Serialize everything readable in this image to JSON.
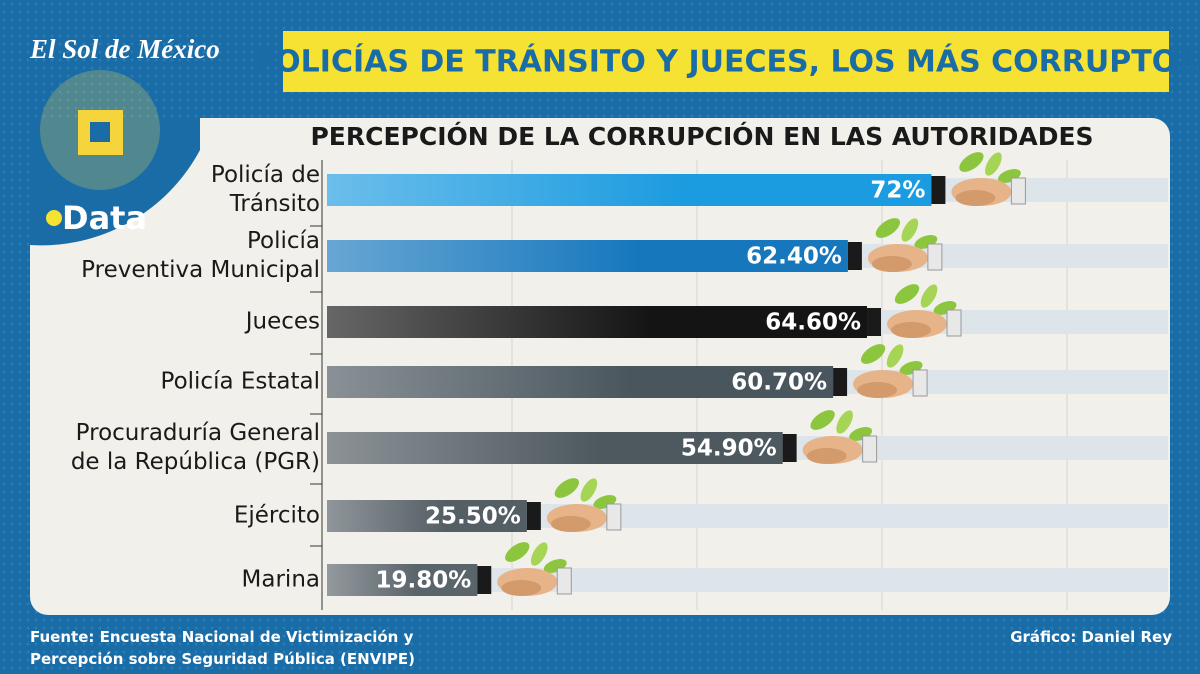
{
  "chart_data": {
    "type": "bar",
    "brand": "El Sol de México",
    "badge": "Data",
    "title": "POLICÍAS DE TRÁNSITO Y JUECES, LOS MÁS CORRUPTOS",
    "subtitle": "PERCEPCIÓN DE LA CORRUPCIÓN EN LAS AUTORIDADES",
    "categories": [
      "Policía de\nTránsito",
      "Policía\nPreventiva Municipal",
      "Jueces",
      "Policía Estatal",
      "Procuraduría General\nde la República (PGR)",
      "Ejército",
      "Marina"
    ],
    "values": [
      72,
      62.4,
      64.6,
      60.7,
      54.9,
      25.5,
      19.8
    ],
    "value_labels": [
      "72%",
      "62.40%",
      "64.60%",
      "60.70%",
      "54.90%",
      "25.50%",
      "19.80%"
    ],
    "colors": [
      "#1b9be0",
      "#1677bd",
      "#141414",
      "#4a565e",
      "#4e585f",
      "#545e65",
      "#5a646b"
    ],
    "source": "Fuente: Encuesta Nacional de Victimización y\nPercepción sobre Seguridad Pública (ENVIPE)",
    "credit": "Gráfico: Daniel Rey"
  }
}
